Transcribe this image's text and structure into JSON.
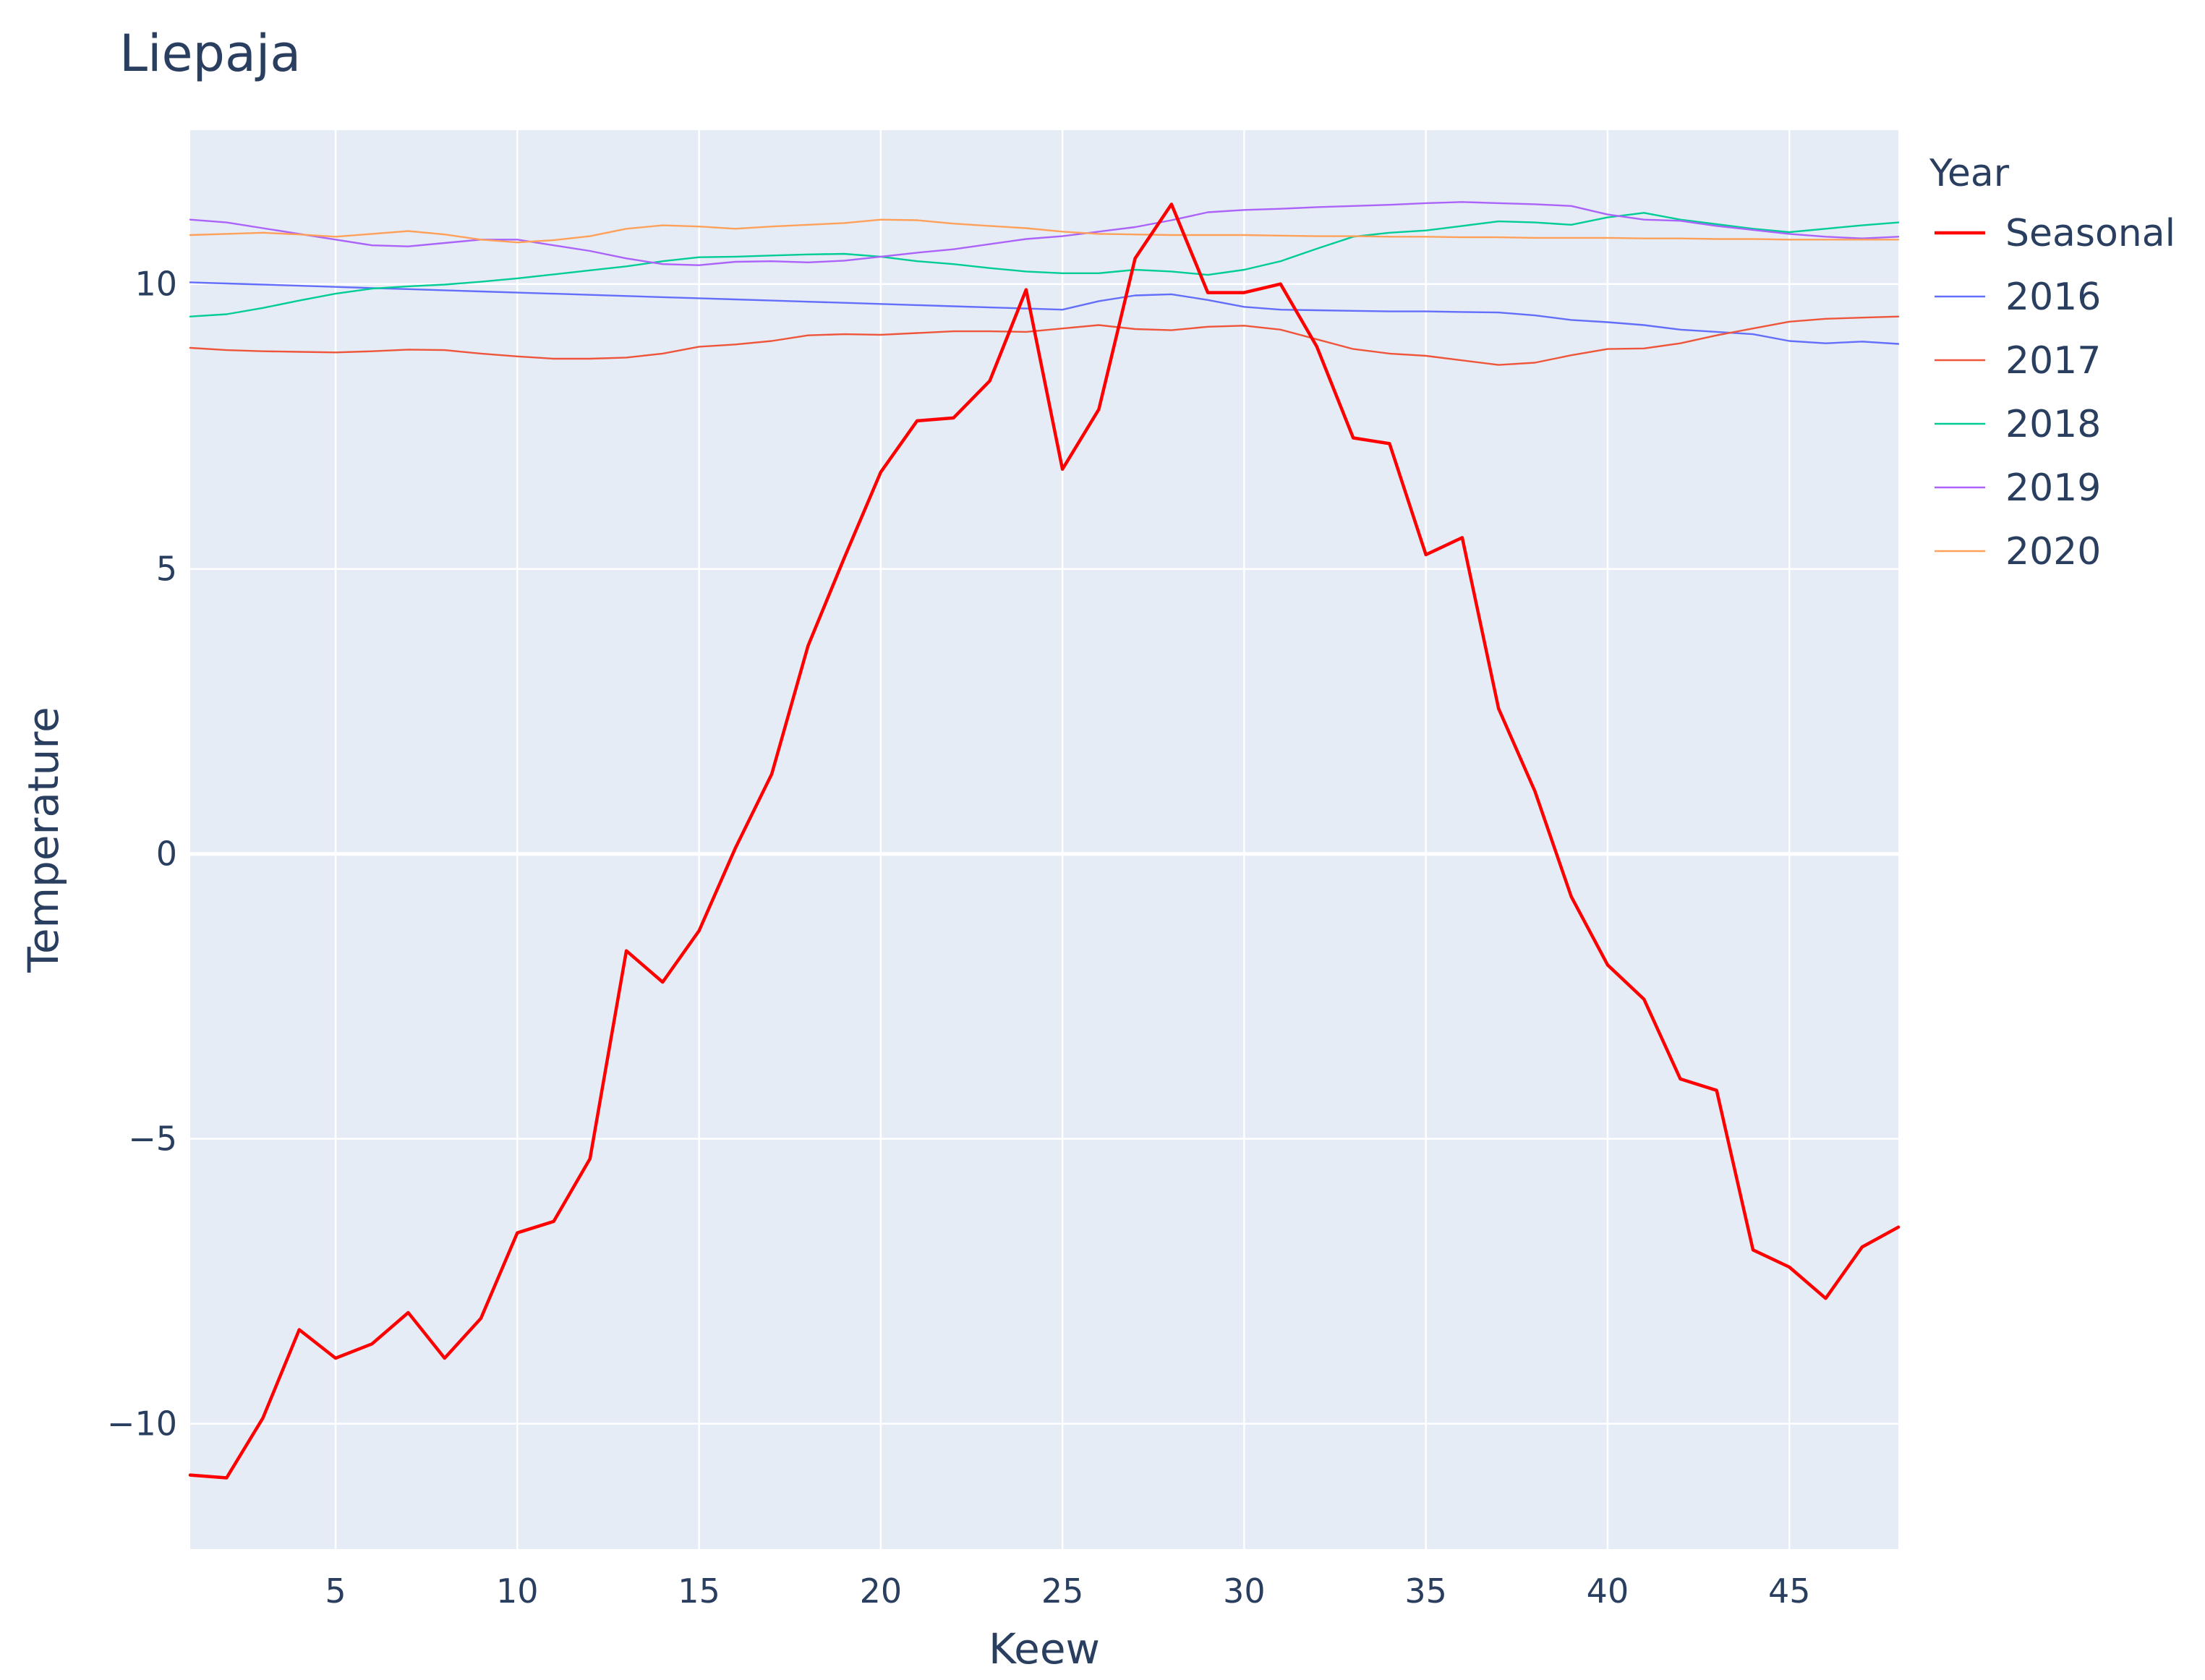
{
  "chart_data": {
    "type": "line",
    "title": "Liepaja",
    "xlabel": "Keew",
    "ylabel": "Temperature",
    "xlim": [
      1,
      48
    ],
    "ylim": [
      -12.2,
      12.7
    ],
    "grid": true,
    "legend_title": "Year",
    "legend_position": "top-right",
    "xticks": [
      5,
      10,
      15,
      20,
      25,
      30,
      35,
      40,
      45
    ],
    "yticks": [
      -10,
      -5,
      0,
      5,
      10
    ],
    "ytick_labels": [
      "−10",
      "−5",
      "0",
      "5",
      "10"
    ],
    "x": [
      1,
      2,
      3,
      4,
      5,
      6,
      7,
      8,
      9,
      10,
      11,
      12,
      13,
      14,
      15,
      16,
      17,
      18,
      19,
      20,
      21,
      22,
      23,
      24,
      25,
      26,
      27,
      28,
      29,
      30,
      31,
      32,
      33,
      34,
      35,
      36,
      37,
      38,
      39,
      40,
      41,
      42,
      43,
      44,
      45,
      46,
      47,
      48
    ],
    "series": [
      {
        "name": "Seasonal",
        "color": "#ff0000",
        "width": 4.5,
        "values": [
          -10.9,
          -10.95,
          -9.9,
          -8.35,
          -8.85,
          -8.6,
          -8.05,
          -8.85,
          -8.15,
          -6.65,
          -6.45,
          -5.35,
          -1.7,
          -2.25,
          -1.35,
          0.1,
          1.4,
          3.65,
          5.2,
          6.7,
          7.6,
          7.65,
          8.3,
          9.9,
          6.75,
          7.8,
          10.45,
          11.4,
          9.85,
          9.85,
          10.0,
          8.9,
          7.3,
          7.2,
          5.25,
          5.55,
          2.55,
          1.1,
          -0.75,
          -1.95,
          -2.55,
          -3.95,
          -4.15,
          -6.95,
          -7.25,
          -7.8,
          -6.9,
          -6.55
        ]
      },
      {
        "name": "2016",
        "color": "#636efa",
        "width": 2.4,
        "values": [
          10.03,
          10.01,
          9.99,
          9.97,
          9.95,
          9.93,
          9.91,
          9.89,
          9.87,
          9.85,
          9.83,
          9.81,
          9.79,
          9.77,
          9.75,
          9.73,
          9.71,
          9.69,
          9.67,
          9.65,
          9.63,
          9.61,
          9.59,
          9.57,
          9.55,
          9.7,
          9.8,
          9.82,
          9.72,
          9.6,
          9.55,
          9.54,
          9.53,
          9.52,
          9.52,
          9.51,
          9.5,
          9.45,
          9.37,
          9.33,
          9.28,
          9.2,
          9.16,
          9.12,
          9.0,
          8.96,
          8.99,
          8.95
        ]
      },
      {
        "name": "2017",
        "color": "#ef553b",
        "width": 2.4,
        "values": [
          8.88,
          8.84,
          8.82,
          8.81,
          8.8,
          8.82,
          8.85,
          8.84,
          8.78,
          8.73,
          8.69,
          8.69,
          8.71,
          8.78,
          8.9,
          8.94,
          9.0,
          9.1,
          9.12,
          9.11,
          9.14,
          9.17,
          9.17,
          9.16,
          9.22,
          9.28,
          9.21,
          9.19,
          9.25,
          9.27,
          9.2,
          9.03,
          8.86,
          8.78,
          8.74,
          8.66,
          8.58,
          8.62,
          8.75,
          8.86,
          8.87,
          8.96,
          9.1,
          9.22,
          9.34,
          9.39,
          9.41,
          9.43
        ]
      },
      {
        "name": "2018",
        "color": "#00cc96",
        "width": 2.4,
        "values": [
          9.43,
          9.47,
          9.58,
          9.71,
          9.83,
          9.92,
          9.96,
          9.99,
          10.04,
          10.1,
          10.17,
          10.24,
          10.31,
          10.4,
          10.47,
          10.48,
          10.5,
          10.52,
          10.53,
          10.48,
          10.4,
          10.35,
          10.28,
          10.22,
          10.19,
          10.19,
          10.25,
          10.22,
          10.16,
          10.25,
          10.4,
          10.62,
          10.83,
          10.9,
          10.94,
          11.02,
          11.1,
          11.08,
          11.04,
          11.17,
          11.25,
          11.13,
          11.05,
          10.97,
          10.91,
          10.97,
          11.03,
          11.08
        ]
      },
      {
        "name": "2019",
        "color": "#ab63fa",
        "width": 2.4,
        "values": [
          11.13,
          11.08,
          10.98,
          10.88,
          10.78,
          10.68,
          10.66,
          10.72,
          10.78,
          10.78,
          10.68,
          10.58,
          10.45,
          10.35,
          10.33,
          10.39,
          10.4,
          10.38,
          10.41,
          10.48,
          10.55,
          10.61,
          10.7,
          10.79,
          10.84,
          10.92,
          11.0,
          11.12,
          11.26,
          11.3,
          11.32,
          11.35,
          11.37,
          11.39,
          11.42,
          11.44,
          11.42,
          11.4,
          11.37,
          11.22,
          11.13,
          11.11,
          11.02,
          10.95,
          10.88,
          10.83,
          10.8,
          10.83
        ]
      },
      {
        "name": "2020",
        "color": "#ffa15a",
        "width": 2.4,
        "values": [
          10.86,
          10.88,
          10.9,
          10.87,
          10.83,
          10.88,
          10.93,
          10.87,
          10.78,
          10.73,
          10.77,
          10.84,
          10.97,
          11.03,
          11.01,
          10.97,
          11.01,
          11.04,
          11.07,
          11.13,
          11.12,
          11.06,
          11.02,
          10.98,
          10.92,
          10.88,
          10.87,
          10.86,
          10.86,
          10.86,
          10.85,
          10.84,
          10.84,
          10.83,
          10.83,
          10.82,
          10.82,
          10.81,
          10.81,
          10.81,
          10.8,
          10.8,
          10.79,
          10.79,
          10.78,
          10.78,
          10.78,
          10.78
        ]
      }
    ]
  }
}
